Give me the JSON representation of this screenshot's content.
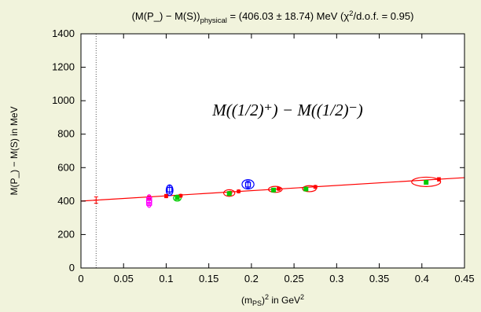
{
  "chart_data": {
    "type": "scatter",
    "title": {
      "pre": "(M(P_) − M(S))",
      "sub": "physical",
      "post": " = (406.03 ± 18.74) MeV (χ",
      "sup": "2",
      "tail": "/d.o.f. = 0.95)"
    },
    "annotation": "M((1/2)⁺) − M((1/2)⁻)",
    "ylabel": "M(P_) − M(S) in MeV",
    "xlabel": {
      "pre": "(m",
      "sub": "PS",
      "mid": ")",
      "sup1": "2",
      "post": " in GeV",
      "sup2": "2"
    },
    "xlim": [
      0,
      0.45
    ],
    "ylim": [
      0,
      1400
    ],
    "xticks": [
      "0",
      "0.05",
      "0.1",
      "0.15",
      "0.2",
      "0.25",
      "0.3",
      "0.35",
      "0.4",
      "0.45"
    ],
    "yticks": [
      "0",
      "200",
      "400",
      "600",
      "800",
      "1000",
      "1200",
      "1400"
    ],
    "physical_point": {
      "x": 0.0178,
      "y": 406.03,
      "yerr": 18.74
    },
    "physical_line_x": 0.0178,
    "fit": {
      "x": [
        0,
        0.45
      ],
      "y": [
        400,
        540
      ]
    },
    "series": [
      {
        "color": "#ff0000",
        "marker": "cross",
        "points": [
          {
            "x": 0.08,
            "y": 420,
            "yerr": 10
          },
          {
            "x": 0.1,
            "y": 430,
            "yerr": 10
          },
          {
            "x": 0.117,
            "y": 432,
            "yerr": 8
          },
          {
            "x": 0.175,
            "y": 450,
            "yerr": 8
          },
          {
            "x": 0.185,
            "y": 458,
            "yerr": 8
          },
          {
            "x": 0.232,
            "y": 473,
            "yerr": 8
          },
          {
            "x": 0.275,
            "y": 485,
            "yerr": 8
          },
          {
            "x": 0.42,
            "y": 530,
            "yerr": 10
          }
        ]
      },
      {
        "color": "#ff00ff",
        "marker": "square",
        "points": [
          {
            "x": 0.08,
            "y": 405,
            "yerr": 20
          },
          {
            "x": 0.08,
            "y": 390,
            "yerr": 18
          }
        ]
      },
      {
        "color": "#0000ff",
        "marker": "square",
        "points": [
          {
            "x": 0.104,
            "y": 468,
            "yerr": 25
          },
          {
            "x": 0.196,
            "y": 498,
            "yerr": 22
          }
        ]
      },
      {
        "color": "#00cc00",
        "marker": "filled-square",
        "points": [
          {
            "x": 0.113,
            "y": 420,
            "yerr": 10
          },
          {
            "x": 0.174,
            "y": 445,
            "yerr": 10
          },
          {
            "x": 0.226,
            "y": 466,
            "yerr": 10
          },
          {
            "x": 0.264,
            "y": 472,
            "yerr": 10
          },
          {
            "x": 0.405,
            "y": 512,
            "yerr": 10
          }
        ]
      }
    ],
    "ellipses": [
      {
        "color": "#ff00ff",
        "x": 0.08,
        "y": 400,
        "rx": 0.003,
        "ry": 38
      },
      {
        "color": "#0000ff",
        "x": 0.104,
        "y": 465,
        "rx": 0.004,
        "ry": 32
      },
      {
        "color": "#0000ff",
        "x": 0.196,
        "y": 500,
        "rx": 0.007,
        "ry": 28
      },
      {
        "color": "#00cc00",
        "x": 0.113,
        "y": 418,
        "rx": 0.0045,
        "ry": 18
      },
      {
        "color": "#ff0000",
        "x": 0.174,
        "y": 448,
        "rx": 0.0065,
        "ry": 20
      },
      {
        "color": "#ff0000",
        "x": 0.228,
        "y": 470,
        "rx": 0.008,
        "ry": 18
      },
      {
        "color": "#ff0000",
        "x": 0.268,
        "y": 474,
        "rx": 0.008,
        "ry": 18
      },
      {
        "color": "#ff0000",
        "x": 0.405,
        "y": 515,
        "rx": 0.017,
        "ry": 28
      }
    ]
  }
}
